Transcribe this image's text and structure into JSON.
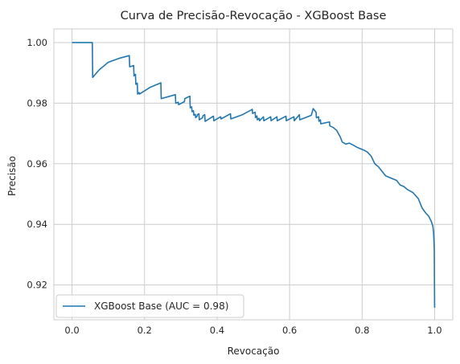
{
  "chart_data": {
    "type": "line",
    "title": "Curva de Precisão-Revocação - XGBoost Base",
    "xlabel": "Revocação",
    "ylabel": "Precisão",
    "xlim": [
      -0.05,
      1.05
    ],
    "ylim": [
      0.9085,
      1.0045
    ],
    "xticks": [
      0.0,
      0.2,
      0.4,
      0.6,
      0.8,
      1.0
    ],
    "xtick_labels": [
      "0.0",
      "0.2",
      "0.4",
      "0.6",
      "0.8",
      "1.0"
    ],
    "yticks": [
      0.92,
      0.94,
      0.96,
      0.98,
      1.0
    ],
    "ytick_labels": [
      "0.92",
      "0.94",
      "0.96",
      "0.98",
      "1.00"
    ],
    "grid": true,
    "legend_position": "lower-left",
    "colors": {
      "series": "#1f77b4",
      "grid": "#cccccc",
      "axes": "#cccccc"
    },
    "series": [
      {
        "name": "XGBoost Base (AUC = 0.98)",
        "x": [
          0.0,
          0.056,
          0.057,
          0.075,
          0.1,
          0.13,
          0.158,
          0.159,
          0.17,
          0.171,
          0.172,
          0.175,
          0.176,
          0.18,
          0.181,
          0.182,
          0.185,
          0.186,
          0.215,
          0.245,
          0.246,
          0.285,
          0.286,
          0.293,
          0.294,
          0.31,
          0.311,
          0.325,
          0.326,
          0.33,
          0.331,
          0.335,
          0.336,
          0.34,
          0.341,
          0.345,
          0.346,
          0.35,
          0.351,
          0.36,
          0.361,
          0.366,
          0.367,
          0.39,
          0.391,
          0.41,
          0.411,
          0.437,
          0.438,
          0.47,
          0.495,
          0.497,
          0.498,
          0.505,
          0.506,
          0.51,
          0.511,
          0.516,
          0.517,
          0.528,
          0.529,
          0.548,
          0.549,
          0.565,
          0.566,
          0.59,
          0.591,
          0.612,
          0.613,
          0.627,
          0.628,
          0.66,
          0.665,
          0.673,
          0.674,
          0.68,
          0.681,
          0.685,
          0.686,
          0.71,
          0.711,
          0.72,
          0.73,
          0.74,
          0.745,
          0.755,
          0.765,
          0.775,
          0.785,
          0.795,
          0.805,
          0.815,
          0.825,
          0.835,
          0.845,
          0.855,
          0.865,
          0.875,
          0.885,
          0.895,
          0.905,
          0.915,
          0.925,
          0.94,
          0.955,
          0.965,
          0.975,
          0.983,
          0.99,
          0.995,
          0.997,
          0.998,
          0.999,
          1.0
        ],
        "y": [
          1.0,
          1.0,
          0.9885,
          0.991,
          0.9935,
          0.9948,
          0.9957,
          0.992,
          0.9924,
          0.989,
          0.9893,
          0.9895,
          0.9862,
          0.9866,
          0.983,
          0.9832,
          0.9835,
          0.983,
          0.9852,
          0.9867,
          0.9815,
          0.9828,
          0.98,
          0.9803,
          0.9795,
          0.9805,
          0.9815,
          0.9823,
          0.9785,
          0.9788,
          0.9772,
          0.9775,
          0.976,
          0.9763,
          0.9752,
          0.9757,
          0.9762,
          0.9765,
          0.9745,
          0.9752,
          0.9758,
          0.9762,
          0.974,
          0.9757,
          0.9742,
          0.9755,
          0.9748,
          0.9765,
          0.9748,
          0.9762,
          0.9778,
          0.978,
          0.9766,
          0.977,
          0.9752,
          0.9758,
          0.9745,
          0.975,
          0.9742,
          0.9755,
          0.9742,
          0.9755,
          0.9742,
          0.9755,
          0.9742,
          0.9757,
          0.9742,
          0.9755,
          0.9742,
          0.9762,
          0.9745,
          0.976,
          0.9782,
          0.977,
          0.9752,
          0.9755,
          0.974,
          0.9745,
          0.9732,
          0.9738,
          0.9725,
          0.972,
          0.971,
          0.9688,
          0.9672,
          0.9665,
          0.9668,
          0.9662,
          0.9655,
          0.965,
          0.9645,
          0.9638,
          0.9625,
          0.96,
          0.959,
          0.9575,
          0.956,
          0.9555,
          0.955,
          0.9545,
          0.953,
          0.9525,
          0.9515,
          0.9505,
          0.9485,
          0.9455,
          0.9438,
          0.9428,
          0.9412,
          0.9395,
          0.9375,
          0.935,
          0.932,
          0.9125
        ]
      }
    ]
  }
}
